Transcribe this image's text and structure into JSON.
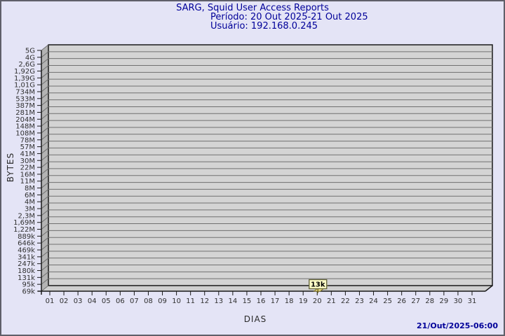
{
  "window": {
    "background": "#e4e4f6",
    "border_color": "#5f5f69"
  },
  "header": {
    "title": "SARG, Squid User Access Reports",
    "period": "Período: 20 Out 2025-21 Out 2025",
    "user": "Usuário: 192.168.0.245",
    "text_color": "#000099"
  },
  "footer": {
    "timestamp": "21/Out/2025-06:00"
  },
  "chart_data": {
    "type": "bar",
    "title": "SARG, Squid User Access Reports",
    "subtitle_period": "Período: 20 Out 2025-21 Out 2025",
    "subtitle_user": "Usuário: 192.168.0.245",
    "xlabel": "DIAS",
    "ylabel": "BYTES",
    "style": "pseudo-3d-bar",
    "grid": "horizontal-on",
    "legend": "none",
    "y_axis_scale": "logarithmic",
    "y_range_labels": [
      "69k",
      "5G"
    ],
    "y_tick_labels": [
      "5G",
      "4G",
      "2,6G",
      "1,92G",
      "1,39G",
      "1,01G",
      "734M",
      "533M",
      "387M",
      "281M",
      "204M",
      "148M",
      "108M",
      "78M",
      "57M",
      "41M",
      "30M",
      "22M",
      "16M",
      "11M",
      "8M",
      "6M",
      "4M",
      "3M",
      "2,3M",
      "1,69M",
      "1,22M",
      "889k",
      "646k",
      "469k",
      "341k",
      "247k",
      "180k",
      "131k",
      "95k",
      "69k"
    ],
    "x_categories": [
      "01",
      "02",
      "03",
      "04",
      "05",
      "06",
      "07",
      "08",
      "09",
      "10",
      "11",
      "12",
      "13",
      "14",
      "15",
      "16",
      "17",
      "18",
      "19",
      "20",
      "21",
      "22",
      "23",
      "24",
      "25",
      "26",
      "27",
      "28",
      "29",
      "30",
      "31"
    ],
    "bars": [
      {
        "day": "20",
        "label": "13k",
        "value": "13k"
      }
    ],
    "colors": {
      "plot_face": "#d4d4d4",
      "panel_fill": "#b3b3b3",
      "floor_fill": "#cfcfcf",
      "grid": "#707070",
      "axis": "#1a1a1a",
      "tick_text": "#303030",
      "bar_fill": "#f5e795",
      "bar_stroke": "#7c701f",
      "label_bg": "#ffffc8",
      "label_border": "#62623a",
      "label_text": "#000000"
    }
  }
}
